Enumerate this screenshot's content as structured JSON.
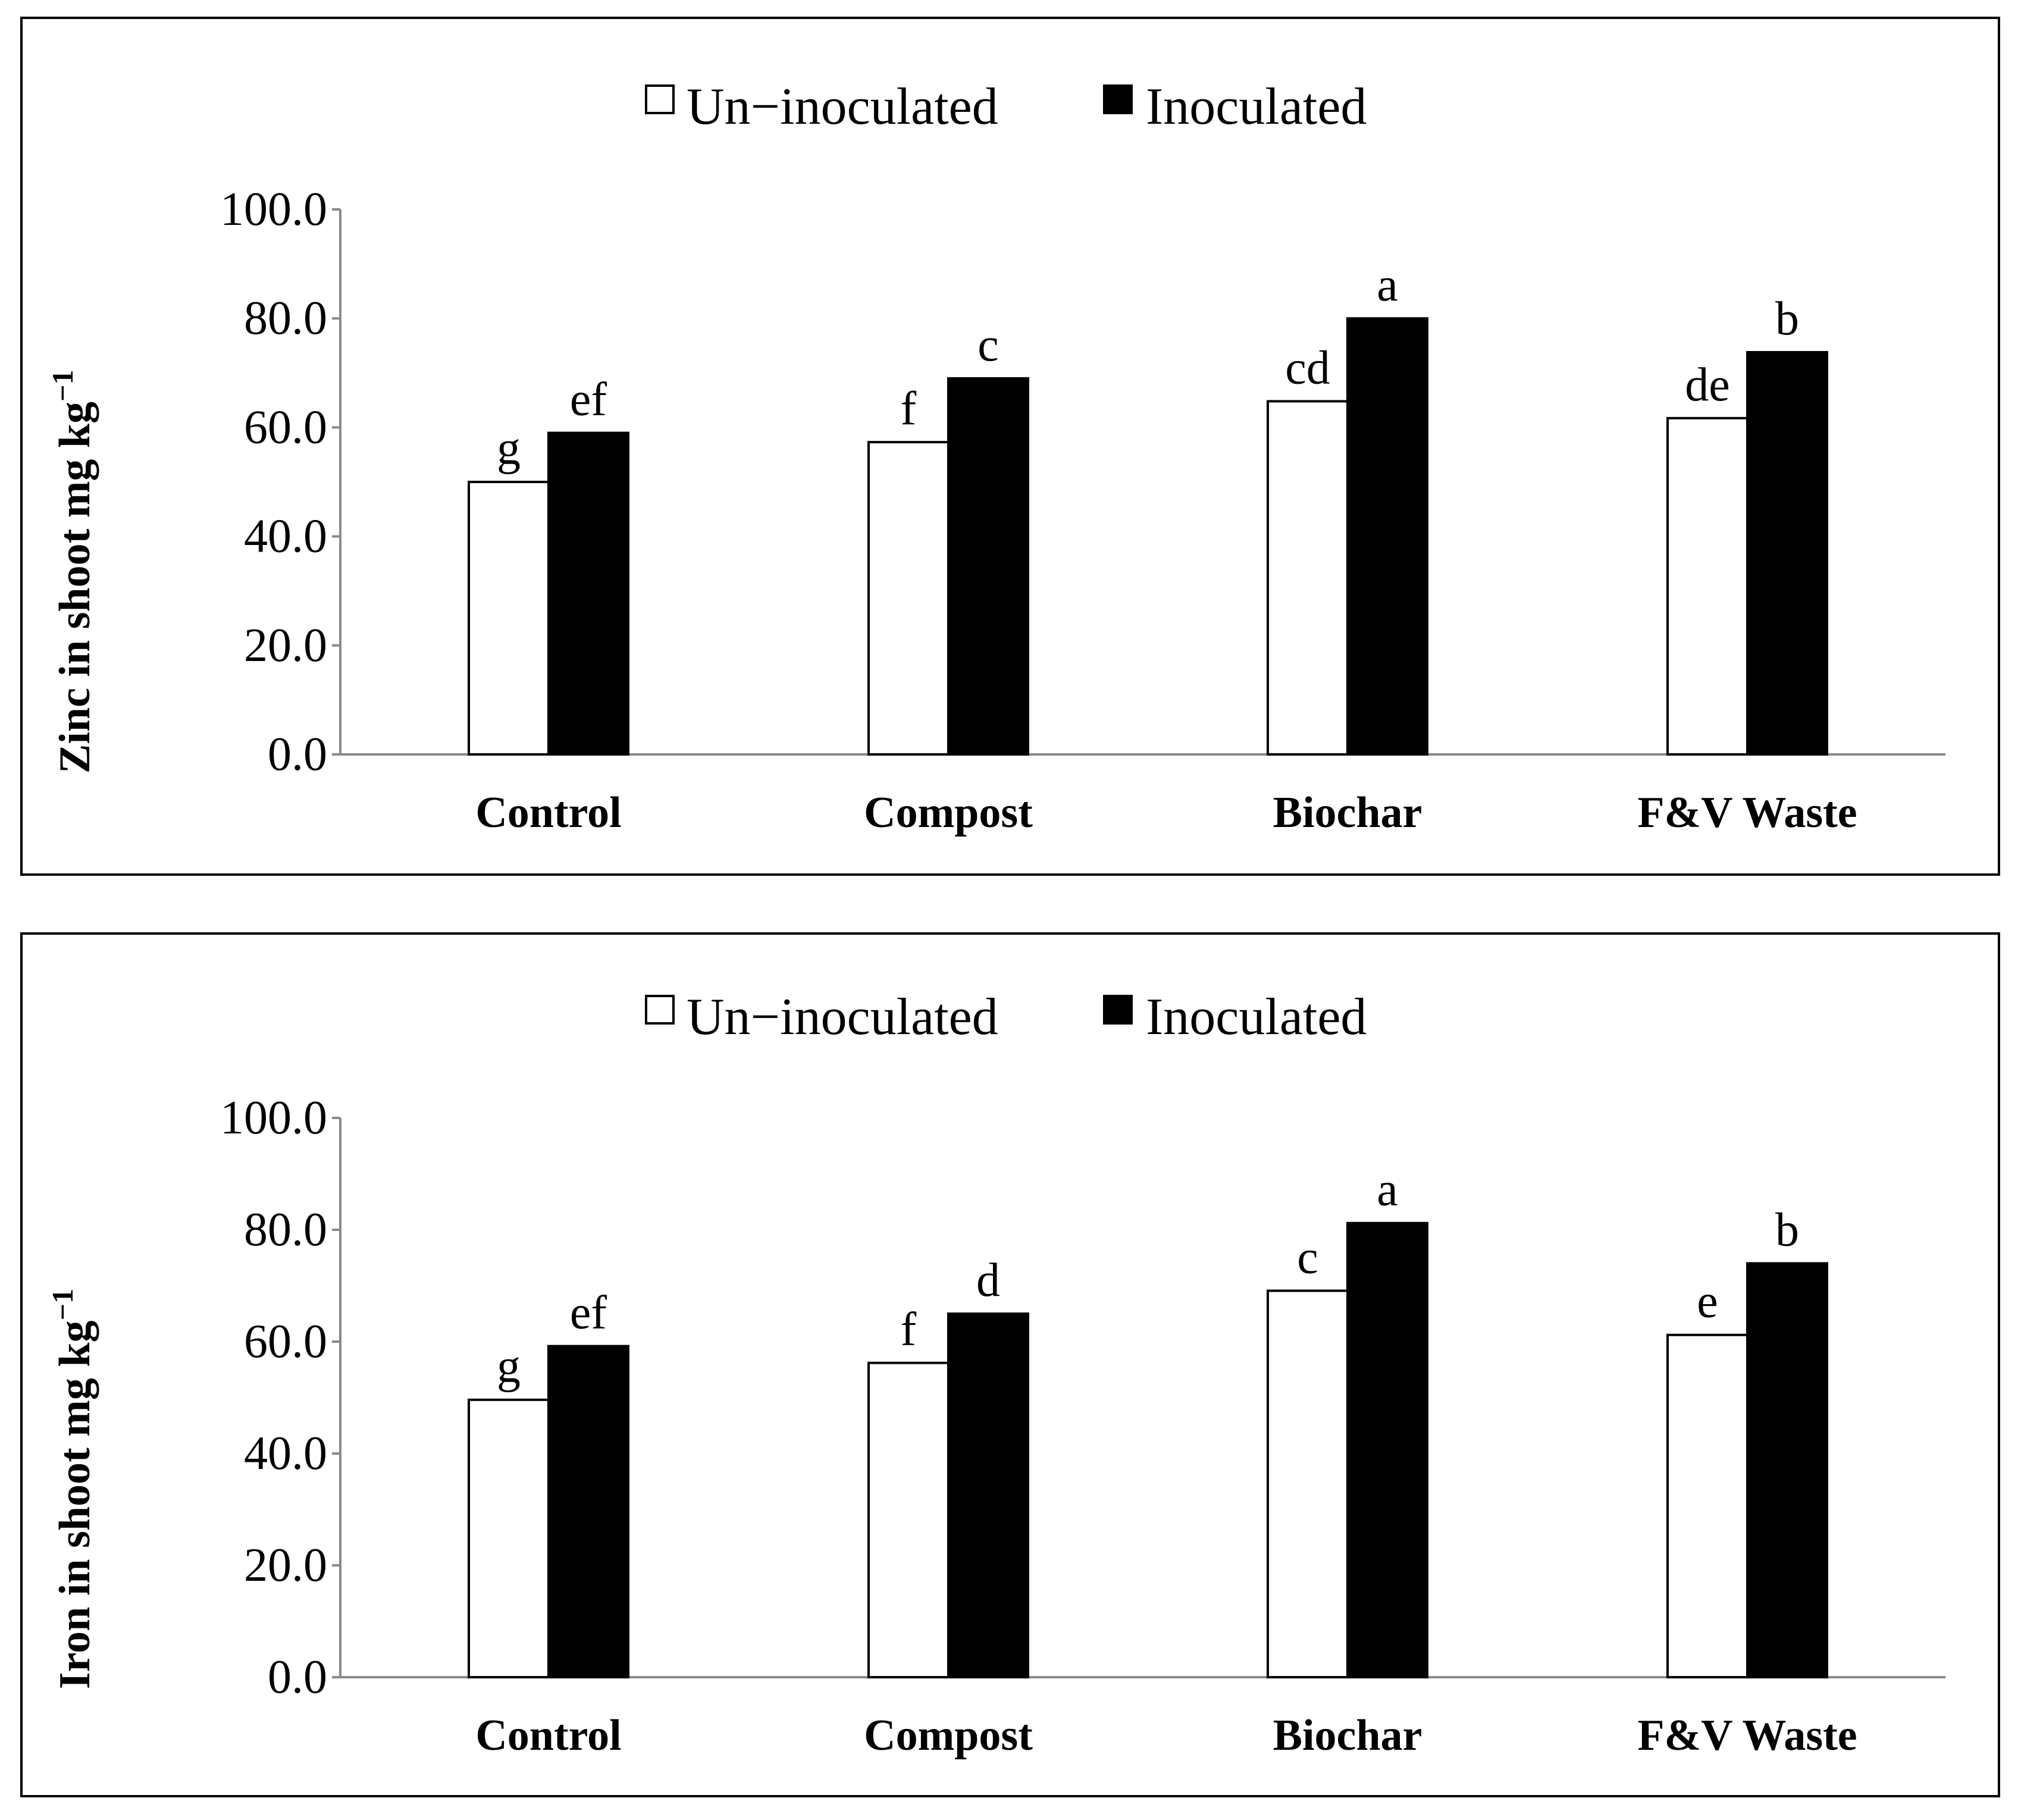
{
  "chart_data": [
    {
      "type": "bar",
      "title": "",
      "xlabel": "",
      "ylabel": "Zinc in shoot mg kg",
      "ylabel_superscript": "−1",
      "ylim": [
        0,
        100
      ],
      "yticks": [
        "0.0",
        "20.0",
        "40.0",
        "60.0",
        "80.0",
        "100.0"
      ],
      "categories": [
        "Control",
        "Compost",
        "Biochar",
        "F&V Waste"
      ],
      "series": [
        {
          "name": "Un−inoculated",
          "color": "#ffffff",
          "values": [
            50.0,
            57.3,
            64.8,
            61.7
          ],
          "labels": [
            "g",
            "f",
            "cd",
            "de"
          ]
        },
        {
          "name": "Inoculated",
          "color": "#000000",
          "values": [
            59.0,
            69.0,
            80.0,
            73.8
          ],
          "labels": [
            "ef",
            "c",
            "a",
            "b"
          ]
        }
      ],
      "legend": "top-center",
      "grid": false
    },
    {
      "type": "bar",
      "title": "",
      "xlabel": "",
      "ylabel": "Iron in shoot mg kg",
      "ylabel_superscript": "−1",
      "ylim": [
        0,
        100
      ],
      "yticks": [
        "0.0",
        "20.0",
        "40.0",
        "60.0",
        "80.0",
        "100.0"
      ],
      "categories": [
        "Control",
        "Compost",
        "Biochar",
        "F&V Waste"
      ],
      "series": [
        {
          "name": "Un−inoculated",
          "color": "#ffffff",
          "values": [
            49.6,
            56.2,
            69.1,
            61.2
          ],
          "labels": [
            "g",
            "f",
            "c",
            "e"
          ]
        },
        {
          "name": "Inoculated",
          "color": "#000000",
          "values": [
            59.2,
            65.0,
            81.2,
            74.0
          ],
          "labels": [
            "ef",
            "d",
            "a",
            "b"
          ]
        }
      ],
      "legend": "top-center",
      "grid": false
    }
  ]
}
